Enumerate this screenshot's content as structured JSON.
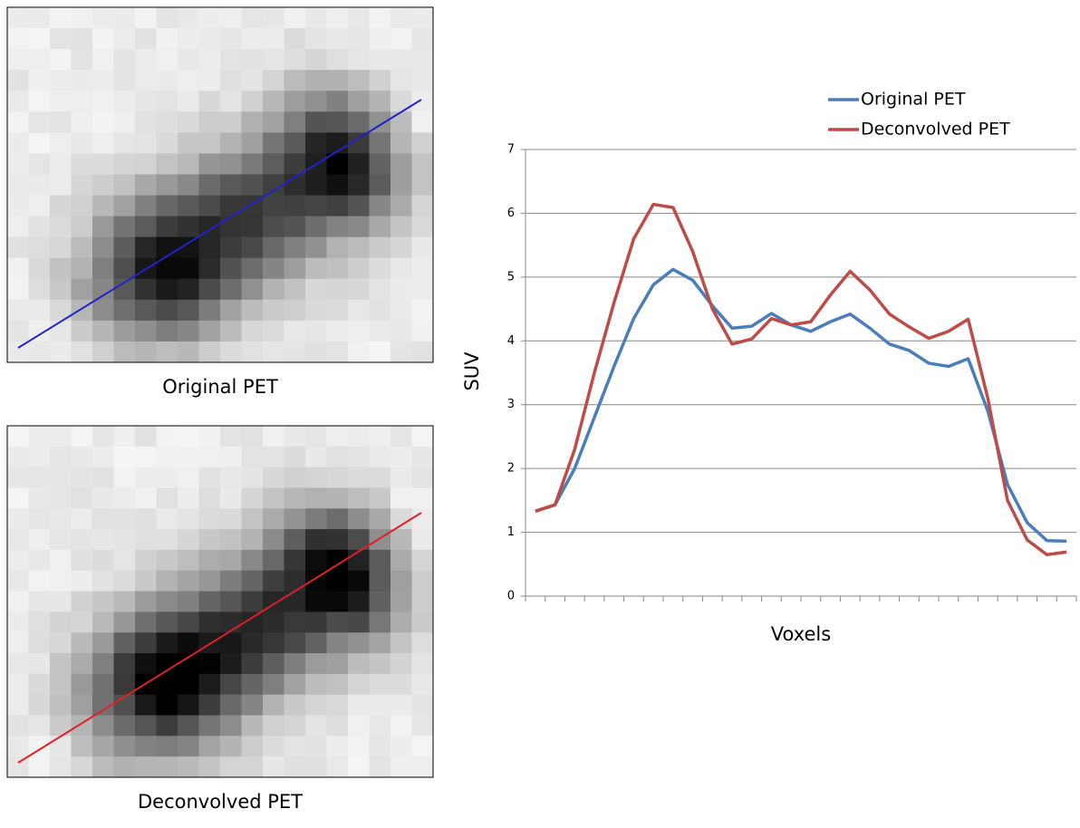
{
  "chart_data": {
    "type": "line",
    "ylabel": "SUV",
    "xlabel": "Voxels",
    "categories": [
      null,
      null,
      null,
      null,
      null,
      null,
      null,
      null,
      null,
      null,
      null,
      null,
      null,
      null,
      null,
      null,
      null,
      null,
      null,
      null,
      null,
      null,
      null,
      null,
      null,
      null,
      null,
      null
    ],
    "series": [
      {
        "name": "Original PET",
        "color": "#4a7ebb",
        "values": [
          1.33,
          1.43,
          2.0,
          2.8,
          3.6,
          4.35,
          4.88,
          5.12,
          4.95,
          4.55,
          4.2,
          4.23,
          4.43,
          4.25,
          4.15,
          4.3,
          4.42,
          4.2,
          3.95,
          3.85,
          3.65,
          3.6,
          3.72,
          2.9,
          1.75,
          1.15,
          0.87,
          0.86
        ]
      },
      {
        "name": "Deconvolved PET",
        "color": "#be4b48",
        "values": [
          1.33,
          1.43,
          2.3,
          3.5,
          4.6,
          5.6,
          6.14,
          6.09,
          5.4,
          4.5,
          3.95,
          4.03,
          4.35,
          4.25,
          4.3,
          4.72,
          5.09,
          4.8,
          4.42,
          4.22,
          4.04,
          4.15,
          4.34,
          3.1,
          1.5,
          0.88,
          0.65,
          0.69
        ]
      }
    ],
    "ylim": [
      0,
      7
    ],
    "yticks": [
      0,
      1,
      2,
      3,
      4,
      5,
      6,
      7
    ],
    "grid": true,
    "legend": "top-right"
  },
  "images": [
    {
      "caption": "Original PET",
      "line_color": "#2222c8"
    },
    {
      "caption": "Deconvolved PET",
      "line_color": "#e0202a"
    }
  ]
}
